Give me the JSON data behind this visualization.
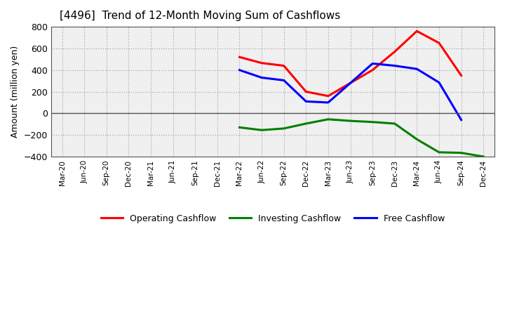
{
  "title": "[4496]  Trend of 12-Month Moving Sum of Cashflows",
  "ylabel": "Amount (million yen)",
  "ylim": [
    -400,
    800
  ],
  "yticks": [
    -400,
    -200,
    0,
    200,
    400,
    600,
    800
  ],
  "background_color": "#ffffff",
  "plot_bg_color": "#f0f0f0",
  "x_labels": [
    "Mar-20",
    "Jun-20",
    "Sep-20",
    "Dec-20",
    "Mar-21",
    "Jun-21",
    "Sep-21",
    "Dec-21",
    "Mar-22",
    "Jun-22",
    "Sep-22",
    "Dec-22",
    "Mar-23",
    "Jun-23",
    "Sep-23",
    "Dec-23",
    "Mar-24",
    "Jun-24",
    "Sep-24",
    "Dec-24"
  ],
  "operating": [
    null,
    null,
    null,
    null,
    null,
    null,
    null,
    null,
    520,
    465,
    440,
    200,
    160,
    null,
    400,
    570,
    760,
    650,
    350,
    null
  ],
  "investing": [
    null,
    null,
    null,
    null,
    null,
    null,
    null,
    null,
    -130,
    -155,
    -140,
    -95,
    -55,
    -70,
    -80,
    -95,
    -240,
    -360,
    -365,
    -400
  ],
  "free": [
    null,
    null,
    null,
    null,
    null,
    null,
    null,
    null,
    400,
    330,
    305,
    110,
    100,
    null,
    460,
    440,
    410,
    285,
    -60,
    null
  ],
  "op_color": "#ff0000",
  "inv_color": "#008000",
  "free_color": "#0000ff",
  "line_width": 2.2,
  "legend_labels": [
    "Operating Cashflow",
    "Investing Cashflow",
    "Free Cashflow"
  ]
}
